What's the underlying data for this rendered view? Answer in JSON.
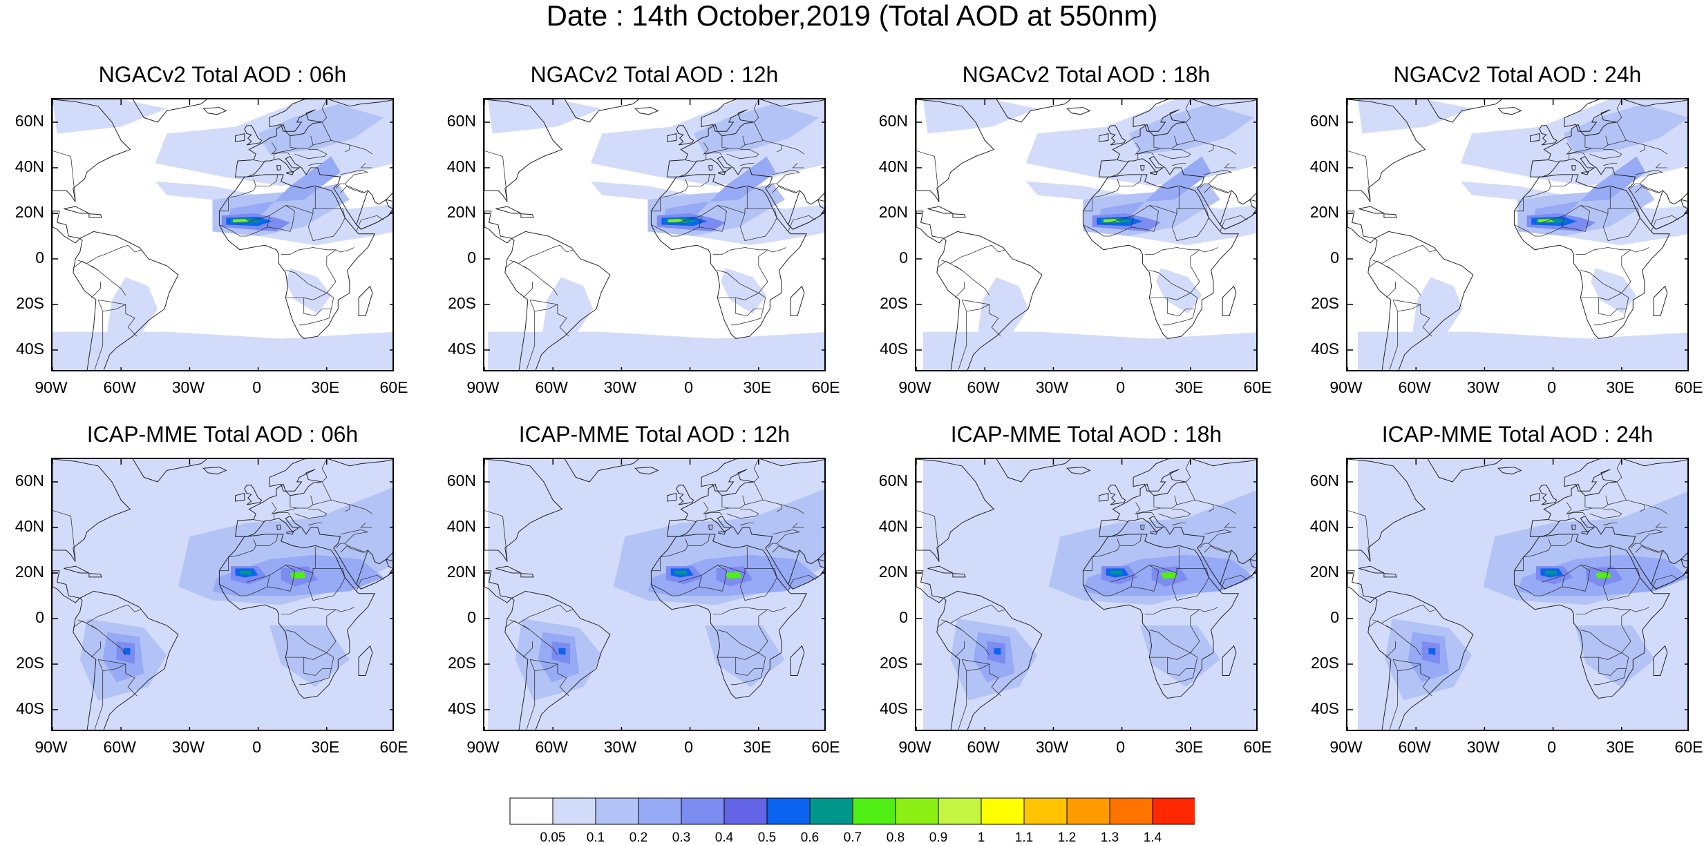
{
  "title": "Date : 14th October,2019 (Total AOD at 550nm)",
  "lat_ticks": [
    "60N",
    "40N",
    "20N",
    "0",
    "20S",
    "40S"
  ],
  "lat_values": [
    60,
    40,
    20,
    0,
    -20,
    -40
  ],
  "lon_ticks": [
    "90W",
    "60W",
    "30W",
    "0",
    "30E",
    "60E"
  ],
  "lon_values": [
    -90,
    -60,
    -30,
    0,
    30,
    60
  ],
  "extent": {
    "lon": [
      -90,
      60
    ],
    "lat": [
      -50,
      70
    ]
  },
  "panels": [
    {
      "title": "NGACv2 Total AOD : 06h",
      "model": "NGACv2",
      "hour": 6
    },
    {
      "title": "NGACv2 Total AOD : 12h",
      "model": "NGACv2",
      "hour": 12
    },
    {
      "title": "NGACv2 Total AOD : 18h",
      "model": "NGACv2",
      "hour": 18
    },
    {
      "title": "NGACv2 Total AOD : 24h",
      "model": "NGACv2",
      "hour": 24
    },
    {
      "title": "ICAP-MME Total AOD : 06h",
      "model": "ICAP-MME",
      "hour": 6
    },
    {
      "title": "ICAP-MME Total AOD : 12h",
      "model": "ICAP-MME",
      "hour": 12
    },
    {
      "title": "ICAP-MME Total AOD : 18h",
      "model": "ICAP-MME",
      "hour": 18
    },
    {
      "title": "ICAP-MME Total AOD : 24h",
      "model": "ICAP-MME",
      "hour": 24
    }
  ],
  "colorbar": {
    "labels": [
      "0.05",
      "0.1",
      "0.2",
      "0.3",
      "0.4",
      "0.5",
      "0.6",
      "0.7",
      "0.8",
      "0.9",
      "1",
      "1.1",
      "1.2",
      "1.3",
      "1.4"
    ],
    "colors": [
      "#ffffff",
      "#d2dcfa",
      "#b4c3f5",
      "#96aaf5",
      "#7d8cf0",
      "#6464e6",
      "#0a64f0",
      "#00968c",
      "#50f014",
      "#8cf014",
      "#c3f541",
      "#ffff00",
      "#ffc300",
      "#ff9b00",
      "#ff7300",
      "#ff2800"
    ]
  }
}
